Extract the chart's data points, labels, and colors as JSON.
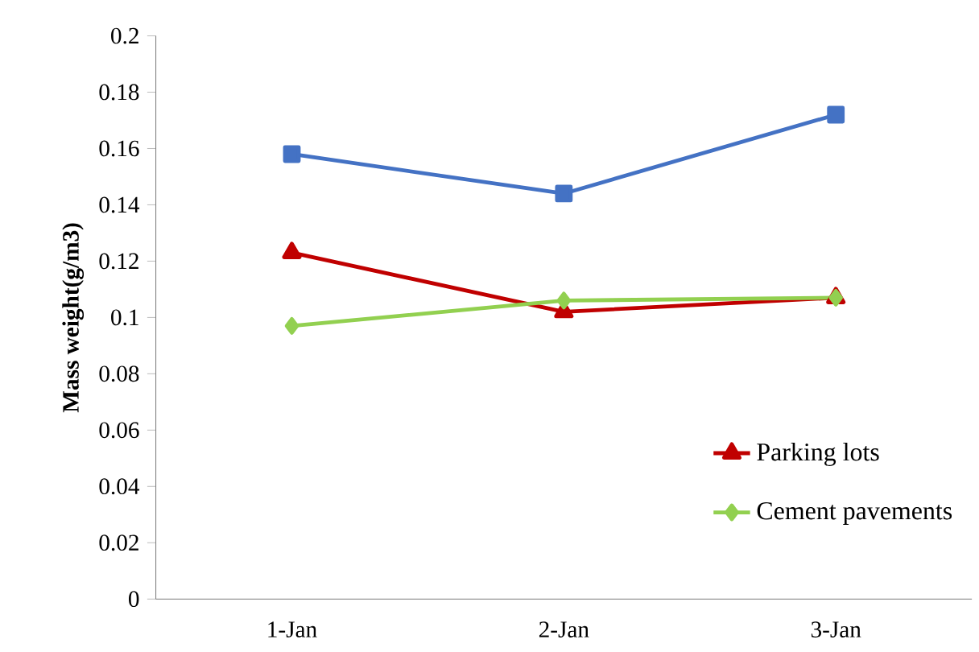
{
  "chart_data": {
    "type": "line",
    "ylabel": "Mass weight(g/m3)",
    "categories": [
      "1-Jan",
      "2-Jan",
      "3-Jan"
    ],
    "series": [
      {
        "color": "#4472c4",
        "marker": "square",
        "values": [
          0.158,
          0.144,
          0.172
        ]
      },
      {
        "name": "Parking lots",
        "color": "#c00000",
        "marker": "triangle",
        "values": [
          0.123,
          0.102,
          0.107
        ]
      },
      {
        "name": "Cement pavements",
        "color": "#92d050",
        "marker": "diamond",
        "values": [
          0.097,
          0.106,
          0.107
        ]
      }
    ],
    "ylim": [
      0,
      0.2
    ],
    "yticks": [
      0,
      0.02,
      0.04,
      0.06,
      0.08,
      0.1,
      0.12,
      0.14,
      0.16,
      0.18,
      0.2
    ],
    "legend": "bottom right",
    "grid": false,
    "line_style": "solid"
  }
}
